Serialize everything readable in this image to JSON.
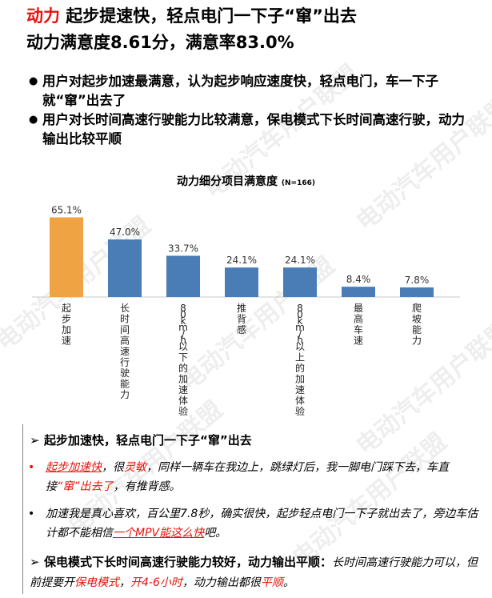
{
  "header": {
    "line1_red": "动力",
    "line1_rest": " 起步提速快，轻点电门一下子“窜”出去",
    "line2": "动力满意度8.61分，满意率83.0%"
  },
  "bullets": [
    "用户对起步加速最满意，认为起步响应速度快，轻点电门，车一下子就“窜”出去了",
    "用户对长时间高速行驶能力比较满意，保电模式下长时间高速行驶，动力输出比较平顺"
  ],
  "watermark": "电动汽车用户联盟",
  "chart_data": {
    "type": "bar",
    "title": "动力细分项目满意度",
    "subtitle": "(N=166)",
    "categories": [
      "起步加速",
      "长时间高速行驶能力",
      "80km/h以下的加速体验",
      "推背感",
      "80km/h以上的加速体验",
      "最高车速",
      "爬坡能力"
    ],
    "values": [
      65.1,
      47.0,
      33.7,
      24.1,
      24.1,
      8.4,
      7.8
    ],
    "value_labels": [
      "65.1%",
      "47.0%",
      "33.7%",
      "24.1%",
      "24.1%",
      "8.4%",
      "7.8%"
    ],
    "colors": [
      "#f0a343",
      "#4a7db5",
      "#4a7db5",
      "#4a7db5",
      "#4a7db5",
      "#4a7db5",
      "#4a7db5"
    ],
    "ylim": [
      0,
      70
    ]
  },
  "comments": {
    "section1_title": "起步加速快，轻点电门一下子“窜”出去",
    "quote1": {
      "p1": "起步加速快",
      "p2": "，很",
      "p3": "灵敏",
      "p4": "，同样一辆车在我边上，跳绿灯后，我一脚电门踩下去，车直接",
      "p5": "“窜”出去了",
      "p6": "，有推背感。"
    },
    "quote2": {
      "p1": "加速我是真心喜欢，百公里7.8秒，确实很快，起步轻点电门一下子就出去了，旁边车估计都不能相信",
      "p2": "一个MPV能这么快",
      "p3": "吧。"
    },
    "section2_title": "保电模式下长时间高速行驶能力较好，动力输出平顺：",
    "section2_text": {
      "p1": "长时间高速行驶能力可以，但前提要开",
      "p2": "保电模式",
      "p3": "，",
      "p4": "开4-6小时",
      "p5": "，动力输出都很",
      "p6": "平顺",
      "p7": "。"
    }
  }
}
